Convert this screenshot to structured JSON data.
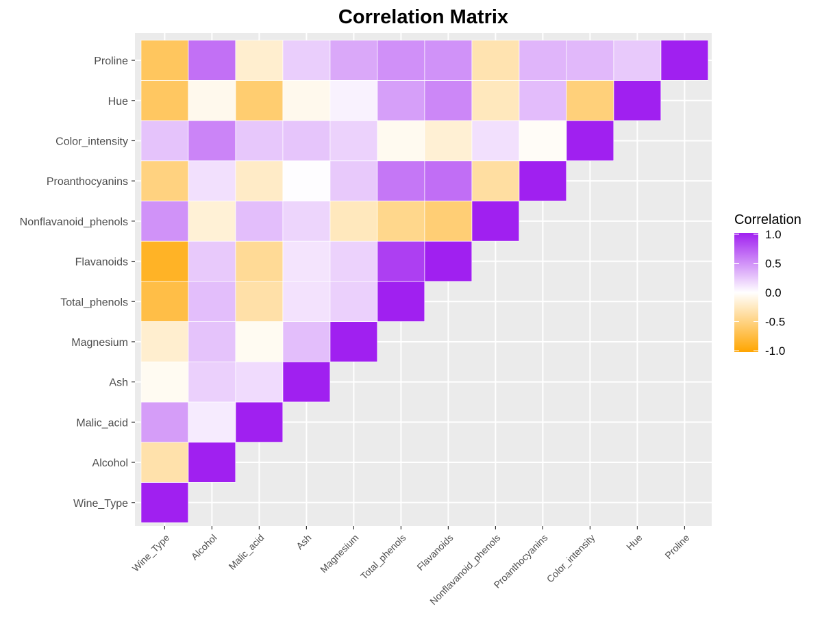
{
  "chart_data": {
    "type": "heatmap",
    "title": "Correlation Matrix",
    "xlabel": "",
    "ylabel": "",
    "variables": [
      "Wine_Type",
      "Alcohol",
      "Malic_acid",
      "Ash",
      "Magnesium",
      "Total_phenols",
      "Flavanoids",
      "Nonflavanoid_phenols",
      "Proanthocyanins",
      "Color_intensity",
      "Hue",
      "Proline"
    ],
    "matrix_lower": [
      [
        1.0
      ],
      [
        -0.33,
        1.0
      ],
      [
        0.44,
        0.09,
        1.0
      ],
      [
        -0.05,
        0.21,
        0.16,
        1.0
      ],
      [
        -0.19,
        0.27,
        -0.05,
        0.29,
        1.0
      ],
      [
        -0.72,
        0.29,
        -0.34,
        0.13,
        0.21,
        1.0
      ],
      [
        -0.85,
        0.24,
        -0.41,
        0.12,
        0.2,
        0.86,
        1.0
      ],
      [
        0.49,
        -0.16,
        0.29,
        0.19,
        -0.26,
        -0.45,
        -0.54,
        1.0
      ],
      [
        -0.5,
        0.14,
        -0.22,
        0.01,
        0.24,
        0.61,
        0.65,
        -0.37,
        1.0
      ],
      [
        0.27,
        0.55,
        0.25,
        0.26,
        0.2,
        -0.06,
        -0.17,
        0.14,
        -0.03,
        1.0
      ],
      [
        -0.62,
        -0.07,
        -0.56,
        -0.07,
        0.06,
        0.43,
        0.54,
        -0.26,
        0.3,
        -0.52,
        1.0
      ],
      [
        -0.63,
        0.64,
        -0.19,
        0.22,
        0.39,
        0.5,
        0.49,
        -0.31,
        0.33,
        0.32,
        0.24,
        1.0
      ]
    ],
    "legend": {
      "title": "Correlation",
      "placement": "right",
      "ticks": [
        "1.0",
        "0.5",
        "0.0",
        "-0.5",
        "-1.0"
      ]
    },
    "colors": {
      "high": "#A020F0",
      "mid": "#FFFFFF",
      "low": "#FFA500",
      "panel_background": "#EBEBEB",
      "gridline": "#FFFFFF",
      "axis_text": "#4D4D4D",
      "title": "#000000"
    },
    "grid": true
  }
}
